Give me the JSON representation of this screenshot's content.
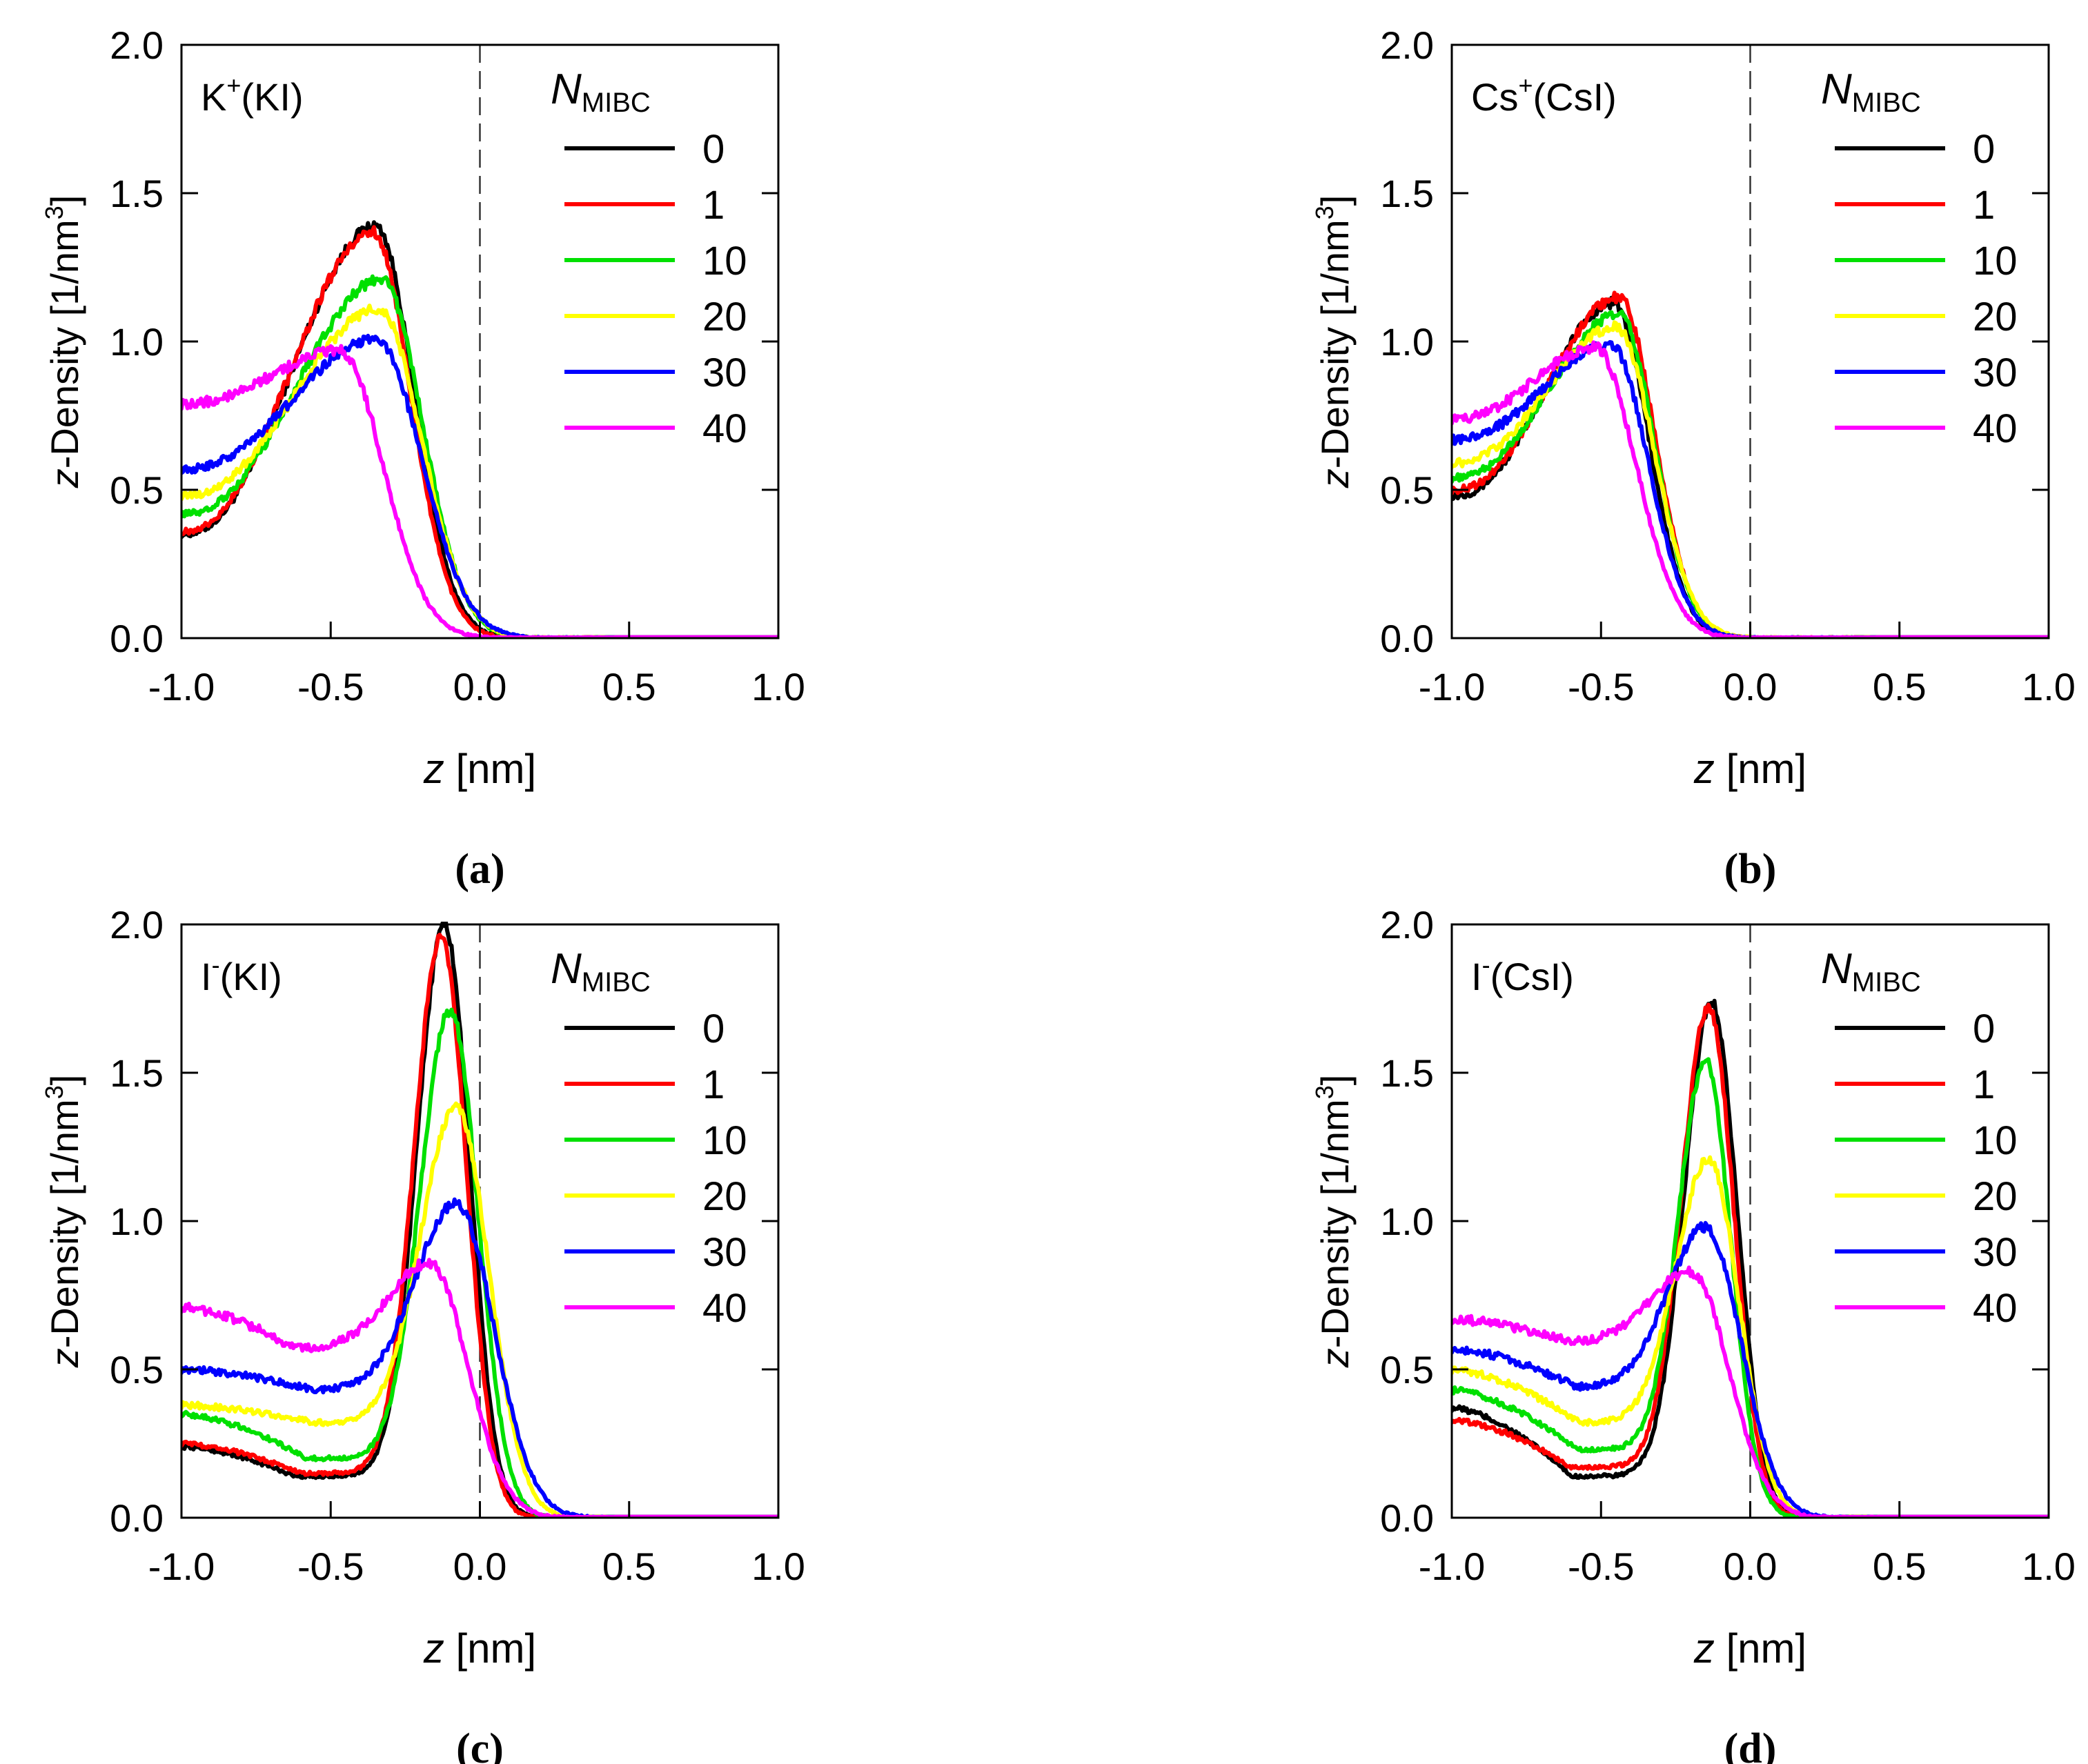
{
  "chart_data": [
    {
      "panel": "a",
      "type": "line",
      "caption": "(a)",
      "annotation": {
        "ion": "K",
        "charge": "+",
        "salt": "(KI)"
      },
      "xlabel": {
        "var": "z",
        "unit": " [nm]"
      },
      "ylabel": {
        "var": "z",
        "text": "-Density [1/nm",
        "exp": "3",
        "close": "]"
      },
      "xlim": [
        -1.0,
        1.0
      ],
      "ylim": [
        0.0,
        2.0
      ],
      "xticks": [
        "-1.0",
        "-0.5",
        "0.0",
        "0.5",
        "1.0"
      ],
      "yticks": [
        "0.0",
        "0.5",
        "1.0",
        "1.5",
        "2.0"
      ],
      "legend": {
        "title_main": "N",
        "title_sub": "MIBC",
        "position": "top-right"
      },
      "series": [
        {
          "name": "0",
          "color": "#000000",
          "shape": {
            "left": 0.35,
            "peakX": -0.35,
            "peakY": 1.39,
            "minX": null,
            "minY": null,
            "tailEnd": 0.35,
            "width": 0.15
          }
        },
        {
          "name": "1",
          "color": "#ff0000",
          "shape": {
            "left": 0.36,
            "peakX": -0.36,
            "peakY": 1.37,
            "minX": null,
            "minY": null,
            "tailEnd": 0.35,
            "width": 0.15
          }
        },
        {
          "name": "10",
          "color": "#00e000",
          "shape": {
            "left": 0.42,
            "peakX": -0.33,
            "peakY": 1.21,
            "minX": null,
            "minY": null,
            "tailEnd": 0.38,
            "width": 0.16
          }
        },
        {
          "name": "20",
          "color": "#ffff00",
          "shape": {
            "left": 0.48,
            "peakX": -0.34,
            "peakY": 1.11,
            "minX": null,
            "minY": null,
            "tailEnd": 0.4,
            "width": 0.17
          }
        },
        {
          "name": "30",
          "color": "#0000ff",
          "shape": {
            "left": 0.57,
            "peakX": -0.35,
            "peakY": 1.01,
            "minX": null,
            "minY": null,
            "tailEnd": 0.42,
            "width": 0.18
          }
        },
        {
          "name": "40",
          "color": "#ff00ff",
          "shape": {
            "left": 0.79,
            "peakX": -0.47,
            "peakY": 0.97,
            "minX": null,
            "minY": null,
            "tailEnd": 0.45,
            "width": 0.17
          }
        }
      ]
    },
    {
      "panel": "b",
      "type": "line",
      "caption": "(b)",
      "annotation": {
        "ion": "Cs",
        "charge": "+",
        "salt": "(CsI)"
      },
      "xlabel": {
        "var": "z",
        "unit": " [nm]"
      },
      "ylabel": {
        "var": "z",
        "text": "-Density [1/nm",
        "exp": "3",
        "close": "]"
      },
      "xlim": [
        -1.0,
        1.0
      ],
      "ylim": [
        0.0,
        2.0
      ],
      "xticks": [
        "-1.0",
        "-0.5",
        "0.0",
        "0.5",
        "1.0"
      ],
      "yticks": [
        "0.0",
        "0.5",
        "1.0",
        "1.5",
        "2.0"
      ],
      "legend": {
        "title_main": "N",
        "title_sub": "MIBC",
        "position": "top-right"
      },
      "series": [
        {
          "name": "0",
          "color": "#000000",
          "shape": {
            "left": 0.48,
            "peakX": -0.46,
            "peakY": 1.13,
            "minX": null,
            "minY": null,
            "tailEnd": 0.35,
            "width": 0.14
          }
        },
        {
          "name": "1",
          "color": "#ff0000",
          "shape": {
            "left": 0.5,
            "peakX": -0.44,
            "peakY": 1.15,
            "minX": null,
            "minY": null,
            "tailEnd": 0.35,
            "width": 0.14
          }
        },
        {
          "name": "10",
          "color": "#00e000",
          "shape": {
            "left": 0.54,
            "peakX": -0.44,
            "peakY": 1.09,
            "minX": null,
            "minY": null,
            "tailEnd": 0.36,
            "width": 0.14
          }
        },
        {
          "name": "20",
          "color": "#ffff00",
          "shape": {
            "left": 0.59,
            "peakX": -0.45,
            "peakY": 1.05,
            "minX": null,
            "minY": null,
            "tailEnd": 0.38,
            "width": 0.15
          }
        },
        {
          "name": "30",
          "color": "#0000ff",
          "shape": {
            "left": 0.67,
            "peakX": -0.47,
            "peakY": 0.99,
            "minX": null,
            "minY": null,
            "tailEnd": 0.4,
            "width": 0.15
          }
        },
        {
          "name": "40",
          "color": "#ff00ff",
          "shape": {
            "left": 0.74,
            "peakX": -0.52,
            "peakY": 0.98,
            "minX": null,
            "minY": null,
            "tailEnd": 0.42,
            "width": 0.16
          }
        }
      ]
    },
    {
      "panel": "c",
      "type": "line",
      "caption": "(c)",
      "annotation": {
        "ion": "I",
        "charge": "-",
        "salt": "(KI)"
      },
      "xlabel": {
        "var": "z",
        "unit": " [nm]"
      },
      "ylabel": {
        "var": "z",
        "text": "-Density [1/nm",
        "exp": "3",
        "close": "]"
      },
      "xlim": [
        -1.0,
        1.0
      ],
      "ylim": [
        0.0,
        2.0
      ],
      "xticks": [
        "-1.0",
        "-0.5",
        "0.0",
        "0.5",
        "1.0"
      ],
      "yticks": [
        "0.0",
        "0.5",
        "1.0",
        "1.5",
        "2.0"
      ],
      "legend": {
        "title_main": "N",
        "title_sub": "MIBC",
        "position": "top-right"
      },
      "series": [
        {
          "name": "0",
          "color": "#000000",
          "shape": {
            "left": 0.24,
            "peakX": -0.12,
            "peakY": 2.0,
            "minX": -0.62,
            "minY": 0.14,
            "tailEnd": 0.3,
            "width": 0.1
          }
        },
        {
          "name": "1",
          "color": "#ff0000",
          "shape": {
            "left": 0.25,
            "peakX": -0.13,
            "peakY": 1.96,
            "minX": -0.6,
            "minY": 0.15,
            "tailEnd": 0.3,
            "width": 0.1
          }
        },
        {
          "name": "10",
          "color": "#00e000",
          "shape": {
            "left": 0.35,
            "peakX": -0.1,
            "peakY": 1.71,
            "minX": -0.58,
            "minY": 0.2,
            "tailEnd": 0.33,
            "width": 0.11
          }
        },
        {
          "name": "20",
          "color": "#ffff00",
          "shape": {
            "left": 0.38,
            "peakX": -0.08,
            "peakY": 1.38,
            "minX": -0.55,
            "minY": 0.32,
            "tailEnd": 0.36,
            "width": 0.13
          }
        },
        {
          "name": "30",
          "color": "#0000ff",
          "shape": {
            "left": 0.5,
            "peakX": -0.08,
            "peakY": 1.06,
            "minX": -0.55,
            "minY": 0.43,
            "tailEnd": 0.42,
            "width": 0.15
          }
        },
        {
          "name": "40",
          "color": "#ff00ff",
          "shape": {
            "left": 0.71,
            "peakX": -0.17,
            "peakY": 0.86,
            "minX": -0.62,
            "minY": 0.57,
            "tailEnd": 0.45,
            "width": 0.15
          }
        }
      ]
    },
    {
      "panel": "d",
      "type": "line",
      "caption": "(d)",
      "annotation": {
        "ion": "I",
        "charge": "-",
        "salt": "(CsI)"
      },
      "xlabel": {
        "var": "z",
        "unit": " [nm]"
      },
      "ylabel": {
        "var": "z",
        "text": "-Density [1/nm",
        "exp": "3",
        "close": "]"
      },
      "xlim": [
        -1.0,
        1.0
      ],
      "ylim": [
        0.0,
        2.0
      ],
      "xticks": [
        "-1.0",
        "-0.5",
        "0.0",
        "0.5",
        "1.0"
      ],
      "yticks": [
        "0.0",
        "0.5",
        "1.0",
        "1.5",
        "2.0"
      ],
      "legend": {
        "title_main": "N",
        "title_sub": "MIBC",
        "position": "top-right"
      },
      "series": [
        {
          "name": "0",
          "color": "#000000",
          "shape": {
            "left": 0.37,
            "peakX": -0.13,
            "peakY": 1.74,
            "minX": -0.6,
            "minY": 0.14,
            "tailEnd": 0.3,
            "width": 0.1
          }
        },
        {
          "name": "1",
          "color": "#ff0000",
          "shape": {
            "left": 0.33,
            "peakX": -0.14,
            "peakY": 1.72,
            "minX": -0.6,
            "minY": 0.17,
            "tailEnd": 0.3,
            "width": 0.1
          }
        },
        {
          "name": "10",
          "color": "#00e000",
          "shape": {
            "left": 0.43,
            "peakX": -0.15,
            "peakY": 1.54,
            "minX": -0.58,
            "minY": 0.23,
            "tailEnd": 0.32,
            "width": 0.1
          }
        },
        {
          "name": "20",
          "color": "#ffff00",
          "shape": {
            "left": 0.5,
            "peakX": -0.14,
            "peakY": 1.21,
            "minX": -0.57,
            "minY": 0.32,
            "tailEnd": 0.35,
            "width": 0.12
          }
        },
        {
          "name": "30",
          "color": "#0000ff",
          "shape": {
            "left": 0.57,
            "peakX": -0.15,
            "peakY": 0.98,
            "minX": -0.58,
            "minY": 0.44,
            "tailEnd": 0.4,
            "width": 0.14
          }
        },
        {
          "name": "40",
          "color": "#ff00ff",
          "shape": {
            "left": 0.67,
            "peakX": -0.2,
            "peakY": 0.83,
            "minX": -0.6,
            "minY": 0.59,
            "tailEnd": 0.43,
            "width": 0.15
          }
        }
      ]
    }
  ]
}
